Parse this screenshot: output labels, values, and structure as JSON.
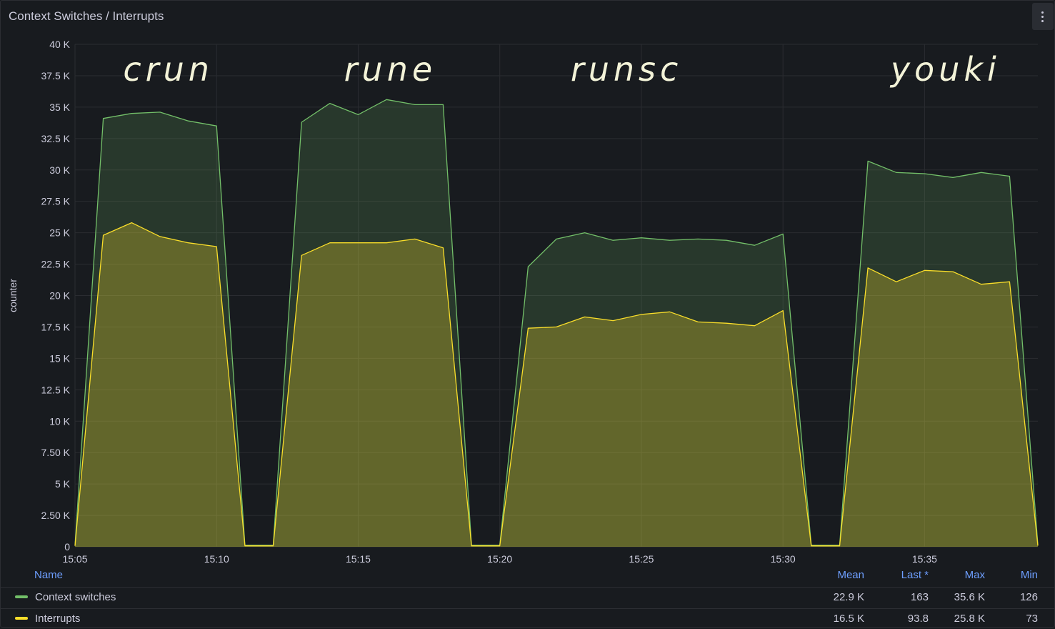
{
  "panel": {
    "title": "Context Switches / Interrupts",
    "menu_icon": "vertical-dots-icon"
  },
  "chart_data": {
    "type": "area",
    "ylabel": "counter",
    "ylim": [
      0,
      40000
    ],
    "yticks": [
      "0",
      "2.50 K",
      "5 K",
      "7.50 K",
      "10 K",
      "12.5 K",
      "15 K",
      "17.5 K",
      "20 K",
      "22.5 K",
      "25 K",
      "27.5 K",
      "30 K",
      "32.5 K",
      "35 K",
      "37.5 K",
      "40 K"
    ],
    "xticks": [
      "15:05",
      "15:10",
      "15:15",
      "15:20",
      "15:25",
      "15:30",
      "15:35"
    ],
    "x": [
      "15:05",
      "15:06",
      "15:07",
      "15:08",
      "15:09",
      "15:10",
      "15:11",
      "15:12",
      "15:13",
      "15:14",
      "15:15",
      "15:16",
      "15:17",
      "15:18",
      "15:19",
      "15:20",
      "15:21",
      "15:22",
      "15:23",
      "15:24",
      "15:25",
      "15:26",
      "15:27",
      "15:28",
      "15:29",
      "15:30",
      "15:31",
      "15:32",
      "15:33",
      "15:34",
      "15:35",
      "15:36",
      "15:37",
      "15:38",
      "15:39"
    ],
    "grid": true,
    "series": [
      {
        "name": "Context switches",
        "color": "#73bf69",
        "values": [
          126,
          34100,
          34500,
          34600,
          33900,
          33500,
          126,
          126,
          33800,
          35300,
          34400,
          35600,
          35200,
          35200,
          126,
          126,
          22300,
          24500,
          25000,
          24400,
          24600,
          24400,
          24500,
          24400,
          24000,
          24900,
          126,
          126,
          30700,
          29800,
          29700,
          29400,
          29800,
          29500,
          163
        ]
      },
      {
        "name": "Interrupts",
        "color": "#fade2a",
        "values": [
          73,
          24800,
          25800,
          24700,
          24200,
          23900,
          73,
          73,
          23200,
          24200,
          24200,
          24200,
          24500,
          23800,
          73,
          73,
          17400,
          17500,
          18300,
          18000,
          18500,
          18700,
          17900,
          17800,
          17600,
          18800,
          73,
          73,
          22200,
          21100,
          22000,
          21900,
          20900,
          21100,
          93.8
        ]
      }
    ],
    "annotations": [
      "crun",
      "rune",
      "runsc",
      "youki"
    ]
  },
  "legend": {
    "headers": {
      "name": "Name",
      "mean": "Mean",
      "last": "Last *",
      "max": "Max",
      "min": "Min"
    },
    "rows": [
      {
        "name": "Context switches",
        "color": "#73bf69",
        "mean": "22.9 K",
        "last": "163",
        "max": "35.6 K",
        "min": "126"
      },
      {
        "name": "Interrupts",
        "color": "#fade2a",
        "mean": "16.5 K",
        "last": "93.8",
        "max": "25.8 K",
        "min": "73"
      }
    ]
  }
}
